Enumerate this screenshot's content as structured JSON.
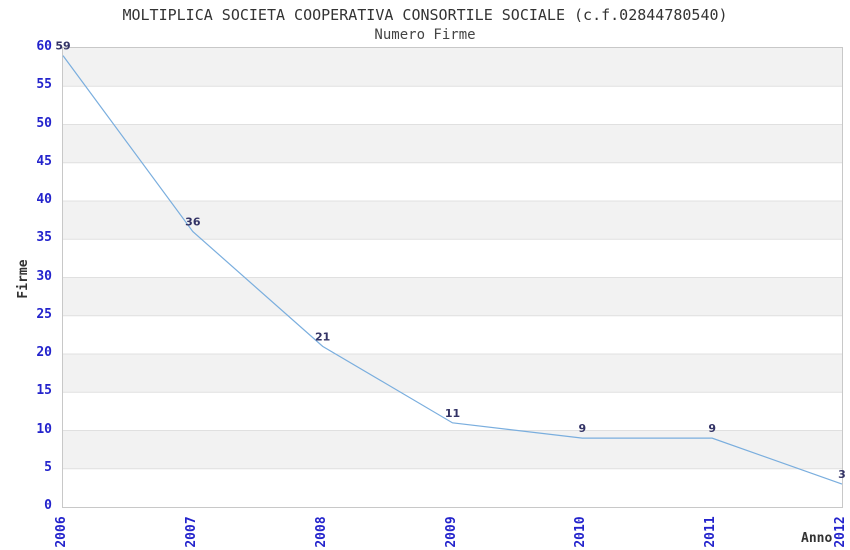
{
  "chart_data": {
    "type": "line",
    "title": "MOLTIPLICA SOCIETA COOPERATIVA CONSORTILE SOCIALE (c.f.02844780540)",
    "subtitle": "Numero Firme",
    "xlabel": "Anno",
    "ylabel": "Firme",
    "x": [
      2006,
      2007,
      2008,
      2009,
      2010,
      2011,
      2012
    ],
    "series": [
      {
        "name": "Numero Firme",
        "values": [
          59,
          36,
          21,
          11,
          9,
          9,
          3
        ]
      }
    ],
    "ylim": [
      0,
      60
    ],
    "ytick_step": 5,
    "grid": true,
    "legend": "none",
    "point_labels": [
      "59",
      "36",
      "21",
      "11",
      "9",
      "9",
      "3"
    ],
    "colors": {
      "line": "#7aaede",
      "tick_label": "#2323cc",
      "point_label": "#333366",
      "band": "#f2f2f2",
      "gridline": "#e0e0e0",
      "plot_border": "#c8c8c8",
      "title": "#333333"
    }
  }
}
